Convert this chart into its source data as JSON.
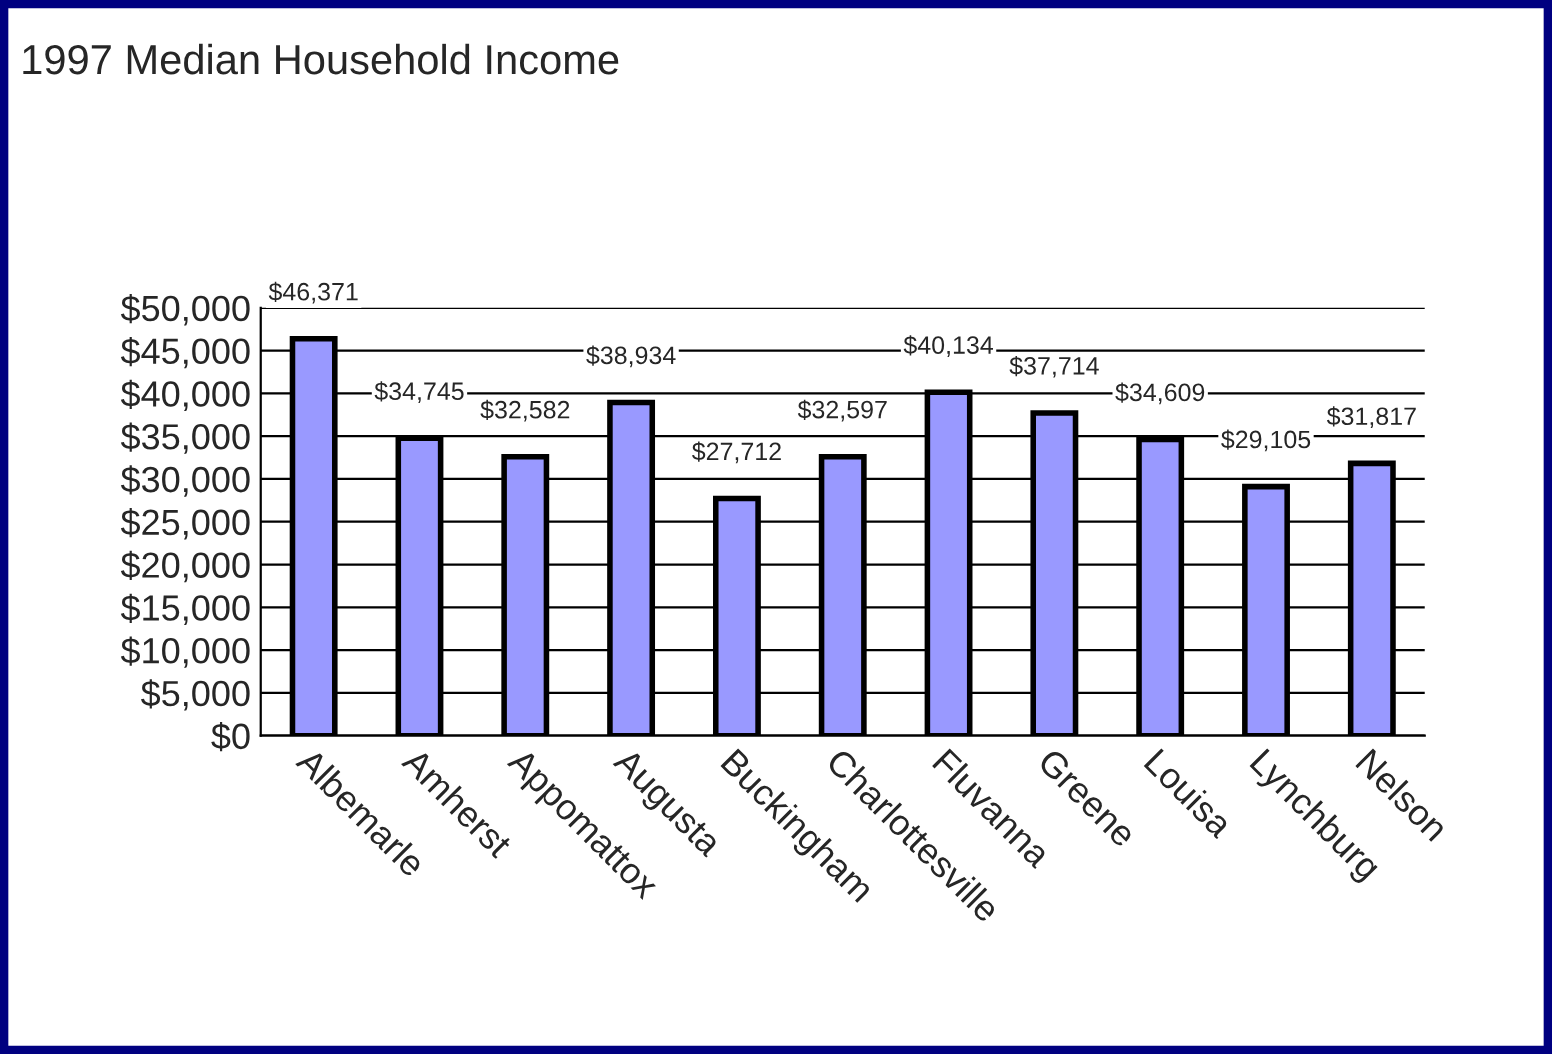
{
  "chart_data": {
    "type": "bar",
    "title": "1997 Median Household Income",
    "categories": [
      "Albemarle",
      "Amherst",
      "Appomattox",
      "Augusta",
      "Buckingham",
      "Charlottesville",
      "Fluvanna",
      "Greene",
      "Louisa",
      "Lynchburg",
      "Nelson"
    ],
    "values": [
      46371,
      34745,
      32582,
      38934,
      27712,
      32597,
      40134,
      37714,
      34609,
      29105,
      31817
    ],
    "value_labels": [
      "$46,371",
      "$34,745",
      "$32,582",
      "$38,934",
      "$27,712",
      "$32,597",
      "$40,134",
      "$37,714",
      "$34,609",
      "$29,105",
      "$31,817"
    ],
    "color": "#9999ff",
    "ylim": [
      0,
      50000
    ],
    "yticks": [
      {
        "value": 0,
        "label": "$0"
      },
      {
        "value": 5000,
        "label": "$5,000"
      },
      {
        "value": 10000,
        "label": "$10,000"
      },
      {
        "value": 15000,
        "label": "$15,000"
      },
      {
        "value": 20000,
        "label": "$20,000"
      },
      {
        "value": 25000,
        "label": "$25,000"
      },
      {
        "value": 30000,
        "label": "$30,000"
      },
      {
        "value": 35000,
        "label": "$35,000"
      },
      {
        "value": 40000,
        "label": "$40,000"
      },
      {
        "value": 45000,
        "label": "$45,000"
      },
      {
        "value": 50000,
        "label": "$50,000"
      }
    ],
    "grid": "y",
    "legend": false
  }
}
